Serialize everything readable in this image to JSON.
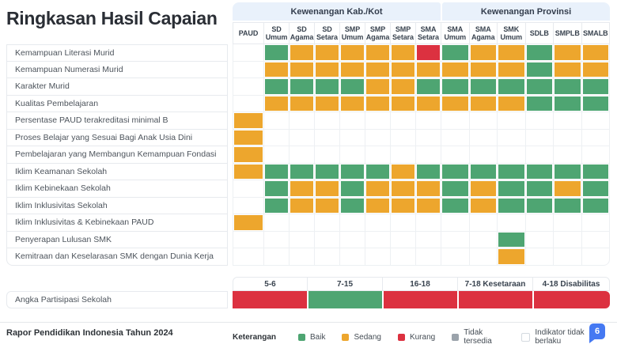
{
  "title": "Ringkasan Hasil Capaian",
  "matrix": {
    "groups": [
      {
        "label": "Kewenangan Kab./Kot",
        "span": 8
      },
      {
        "label": "Kewenangan Provinsi",
        "span": 6
      }
    ],
    "columns": [
      "PAUD",
      "SD Umum",
      "SD Agama",
      "SD Setara",
      "SMP Umum",
      "SMP Agama",
      "SMP Setara",
      "SMA Setara",
      "SMA Umum",
      "SMA Agama",
      "SMK Umum",
      "SDLB",
      "SMPLB",
      "SMALB"
    ],
    "rows": [
      {
        "label": "Kemampuan Literasi Murid",
        "cells": [
          "",
          "b",
          "s",
          "s",
          "s",
          "s",
          "s",
          "k",
          "b",
          "s",
          "s",
          "b",
          "s",
          "s"
        ]
      },
      {
        "label": "Kemampuan Numerasi Murid",
        "cells": [
          "",
          "s",
          "s",
          "s",
          "s",
          "s",
          "s",
          "s",
          "s",
          "s",
          "s",
          "b",
          "s",
          "s"
        ]
      },
      {
        "label": "Karakter Murid",
        "cells": [
          "",
          "b",
          "b",
          "b",
          "b",
          "s",
          "s",
          "b",
          "b",
          "b",
          "b",
          "b",
          "b",
          "b"
        ]
      },
      {
        "label": "Kualitas Pembelajaran",
        "cells": [
          "",
          "s",
          "s",
          "s",
          "s",
          "s",
          "s",
          "s",
          "s",
          "s",
          "s",
          "b",
          "b",
          "b"
        ]
      },
      {
        "label": "Persentase PAUD terakreditasi minimal B",
        "cells": [
          "s",
          "",
          "",
          "",
          "",
          "",
          "",
          "",
          "",
          "",
          "",
          "",
          "",
          ""
        ]
      },
      {
        "label": "Proses Belajar yang Sesuai Bagi Anak Usia Dini",
        "cells": [
          "s",
          "",
          "",
          "",
          "",
          "",
          "",
          "",
          "",
          "",
          "",
          "",
          "",
          ""
        ]
      },
      {
        "label": "Pembelajaran yang Membangun Kemampuan Fondasi",
        "cells": [
          "s",
          "",
          "",
          "",
          "",
          "",
          "",
          "",
          "",
          "",
          "",
          "",
          "",
          ""
        ]
      },
      {
        "label": "Iklim Keamanan Sekolah",
        "cells": [
          "s",
          "b",
          "b",
          "b",
          "b",
          "b",
          "s",
          "b",
          "b",
          "b",
          "b",
          "b",
          "b",
          "b"
        ]
      },
      {
        "label": "Iklim Kebinekaan Sekolah",
        "cells": [
          "",
          "b",
          "s",
          "s",
          "b",
          "s",
          "s",
          "s",
          "b",
          "s",
          "b",
          "b",
          "s",
          "b"
        ]
      },
      {
        "label": "Iklim Inklusivitas Sekolah",
        "cells": [
          "",
          "b",
          "s",
          "s",
          "b",
          "s",
          "s",
          "s",
          "b",
          "s",
          "b",
          "b",
          "b",
          "b"
        ]
      },
      {
        "label": "Iklim Inklusivitas & Kebinekaan PAUD",
        "cells": [
          "s",
          "",
          "",
          "",
          "",
          "",
          "",
          "",
          "",
          "",
          "",
          "",
          "",
          ""
        ]
      },
      {
        "label": "Penyerapan Lulusan SMK",
        "cells": [
          "",
          "",
          "",
          "",
          "",
          "",
          "",
          "",
          "",
          "",
          "b",
          "",
          "",
          ""
        ]
      },
      {
        "label": "Kemitraan dan Keselarasan SMK dengan Dunia Kerja",
        "cells": [
          "",
          "",
          "",
          "",
          "",
          "",
          "",
          "",
          "",
          "",
          "s",
          "",
          "",
          ""
        ]
      }
    ]
  },
  "participation": {
    "label": "Angka Partisipasi Sekolah",
    "columns": [
      "5-6",
      "7-15",
      "16-18",
      "7-18 Kesetaraan",
      "4-18 Disabilitas"
    ],
    "cells": [
      "k",
      "b",
      "k",
      "k",
      "k"
    ]
  },
  "legend": {
    "label": "Keterangan",
    "items": [
      {
        "label": "Baik",
        "key": "baik"
      },
      {
        "label": "Sedang",
        "key": "sedang"
      },
      {
        "label": "Kurang",
        "key": "kurang"
      },
      {
        "label": "Tidak tersedia",
        "key": "tidak_tersedia"
      },
      {
        "label": "Indikator tidak berlaku",
        "key": "none"
      }
    ]
  },
  "status_labels": {
    "b": "Baik",
    "s": "Sedang",
    "k": "Kurang",
    "": "Indikator tidak berlaku"
  },
  "footer": {
    "source": "Rapor Pendidikan Indonesia Tahun 2024",
    "page_badge": "6"
  },
  "colors": {
    "baik": "#4EA572",
    "sedang": "#EDA62D",
    "kurang": "#DC3140",
    "tidak_tersedia": "#9BA3AB",
    "none": "#FFFFFF",
    "band": "#E9F1FB",
    "badge": "#4579F2"
  }
}
